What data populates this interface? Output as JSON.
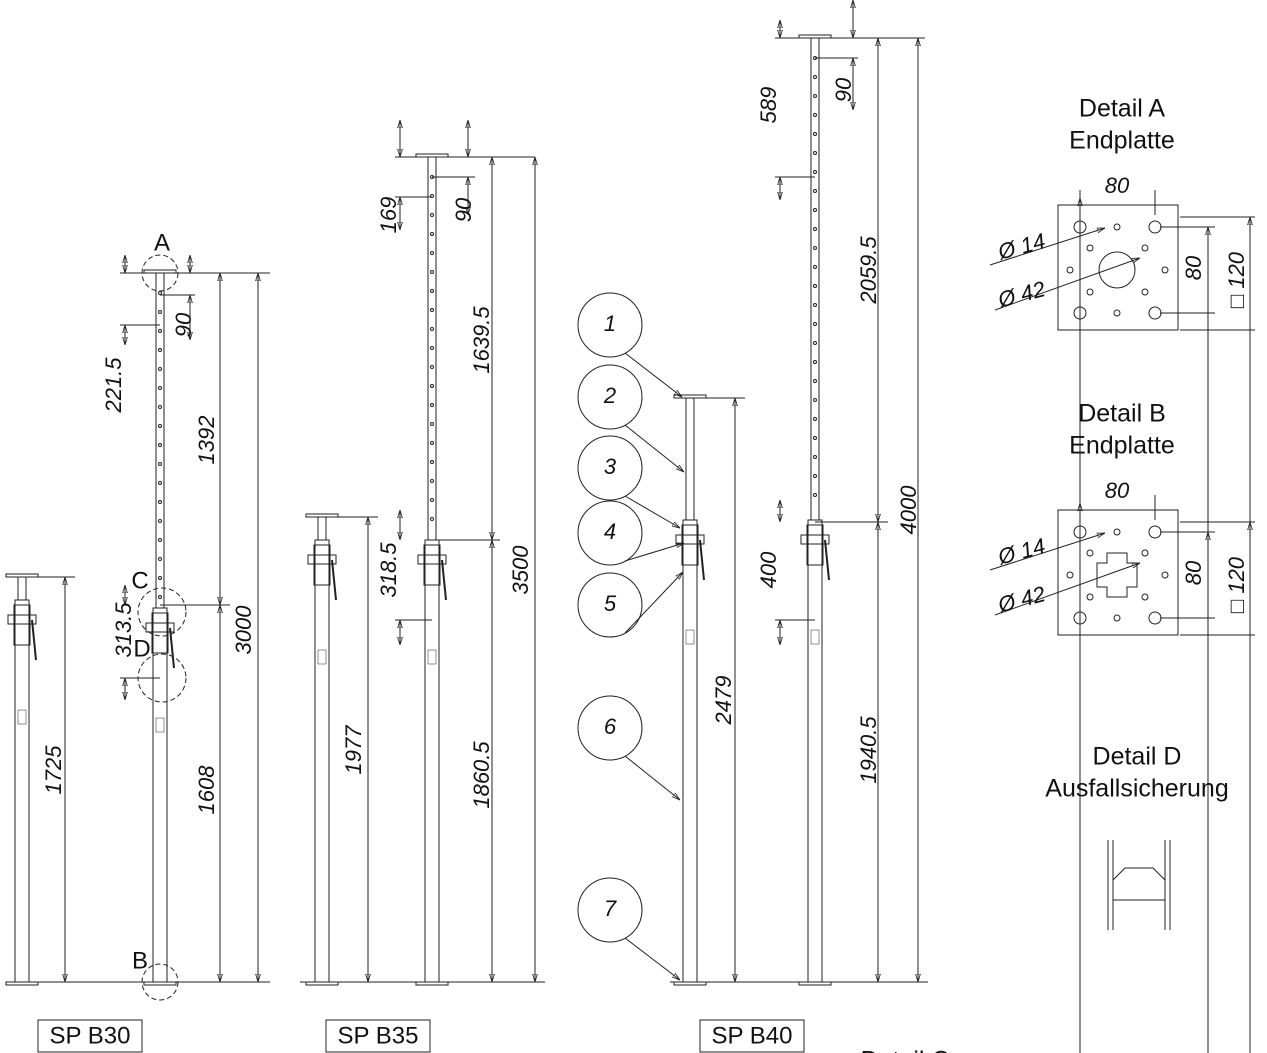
{
  "drawing": {
    "prop_labels": [
      "SP B30",
      "SP B35",
      "SP B40"
    ],
    "detail_markers": [
      "A",
      "B",
      "C",
      "D"
    ],
    "callouts": [
      "1",
      "2",
      "3",
      "4",
      "5",
      "6",
      "7"
    ],
    "dimensions": {
      "b30": [
        "1725",
        "221.5",
        "90",
        "1392",
        "313.5",
        "1608",
        "3000"
      ],
      "b35": [
        "1977",
        "169",
        "90",
        "1639.5",
        "318.5",
        "1860.5",
        "3500"
      ],
      "b40": [
        "2479",
        "589",
        "90",
        "2059.5",
        "400",
        "1940.5",
        "4000"
      ]
    }
  },
  "details": [
    {
      "title": "Detail A",
      "subtitle": "Endplatte",
      "width": "80",
      "hole_small": "Ø 14",
      "hole_large": "Ø 42",
      "inner": "80",
      "outer": "□ 120"
    },
    {
      "title": "Detail B",
      "subtitle": "Endplatte",
      "width": "80",
      "hole_small": "Ø 14",
      "hole_large": "Ø 42",
      "inner": "80",
      "outer": "□ 120"
    },
    {
      "title": "Detail D",
      "subtitle": "Ausfallsicherung"
    },
    {
      "title": "Detail C"
    }
  ]
}
